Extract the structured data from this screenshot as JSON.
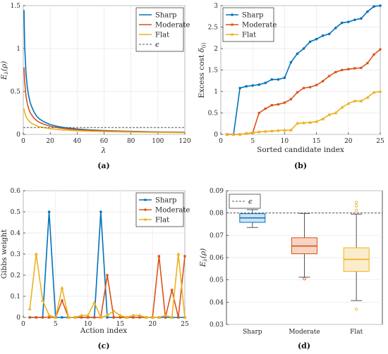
{
  "colors": {
    "sharp": "#0072BD",
    "moderate": "#D95319",
    "flat": "#EDB120",
    "epsilon": "#555555",
    "axis": "#262626",
    "grid": "#e6e6e6"
  },
  "chart_data": [
    {
      "panel": "a",
      "type": "line",
      "caption": "(a)",
      "xlabel": "λ",
      "ylabel": "E_λ(ρ)",
      "xlim": [
        0,
        120
      ],
      "ylim": [
        0,
        1.5
      ],
      "xticks": [
        "0",
        "20",
        "40",
        "60",
        "80",
        "100",
        "120"
      ],
      "yticks": [
        "0",
        "0.5",
        "1",
        "1.5"
      ],
      "grid": true,
      "legend": "top-right",
      "epsilon_line": {
        "label": "ϵ",
        "y": 0.08
      },
      "x": [
        0.5,
        1,
        2,
        3,
        4,
        5,
        6,
        8,
        10,
        12,
        15,
        20,
        25,
        30,
        40,
        50,
        60,
        70,
        80,
        90,
        100,
        110,
        120
      ],
      "series": [
        {
          "name": "Sharp",
          "values": [
            1.45,
            1.05,
            0.72,
            0.55,
            0.45,
            0.38,
            0.33,
            0.26,
            0.21,
            0.18,
            0.15,
            0.115,
            0.095,
            0.08,
            0.063,
            0.052,
            0.044,
            0.039,
            0.035,
            0.032,
            0.029,
            0.027,
            0.025
          ]
        },
        {
          "name": "Moderate",
          "values": [
            0.78,
            0.62,
            0.45,
            0.36,
            0.3,
            0.26,
            0.23,
            0.19,
            0.16,
            0.14,
            0.12,
            0.095,
            0.08,
            0.068,
            0.055,
            0.046,
            0.04,
            0.036,
            0.032,
            0.029,
            0.027,
            0.025,
            0.023
          ]
        },
        {
          "name": "Flat",
          "values": [
            0.3,
            0.26,
            0.21,
            0.18,
            0.16,
            0.145,
            0.13,
            0.115,
            0.1,
            0.09,
            0.08,
            0.067,
            0.058,
            0.051,
            0.043,
            0.037,
            0.033,
            0.03,
            0.027,
            0.025,
            0.023,
            0.022,
            0.02
          ]
        }
      ]
    },
    {
      "panel": "b",
      "type": "line",
      "caption": "(b)",
      "xlabel": "Sorted candidate index",
      "ylabel": "Excess cost δ_(i)",
      "xlim": [
        0,
        25
      ],
      "ylim": [
        0,
        3
      ],
      "xticks": [
        "0",
        "5",
        "10",
        "15",
        "20",
        "25"
      ],
      "yticks": [
        "0",
        "0.5",
        "1",
        "1.5",
        "2",
        "2.5",
        "3"
      ],
      "grid": true,
      "legend": "top-left",
      "x": [
        1,
        2,
        3,
        4,
        5,
        6,
        7,
        8,
        9,
        10,
        11,
        12,
        13,
        14,
        15,
        16,
        17,
        18,
        19,
        20,
        21,
        22,
        23,
        24,
        25
      ],
      "series": [
        {
          "name": "Sharp",
          "values": [
            0,
            0,
            1.08,
            1.12,
            1.14,
            1.16,
            1.2,
            1.28,
            1.28,
            1.32,
            1.68,
            1.88,
            2.0,
            2.16,
            2.22,
            2.3,
            2.34,
            2.48,
            2.6,
            2.62,
            2.67,
            2.7,
            2.86,
            2.98,
            3.0
          ]
        },
        {
          "name": "Moderate",
          "values": [
            0,
            0,
            0,
            0.02,
            0.04,
            0.5,
            0.6,
            0.68,
            0.7,
            0.74,
            0.82,
            0.98,
            1.08,
            1.1,
            1.15,
            1.24,
            1.36,
            1.45,
            1.5,
            1.52,
            1.54,
            1.55,
            1.66,
            1.86,
            1.98
          ]
        },
        {
          "name": "Flat",
          "values": [
            0,
            0,
            0,
            0.02,
            0.04,
            0.06,
            0.07,
            0.08,
            0.09,
            0.1,
            0.1,
            0.26,
            0.27,
            0.28,
            0.3,
            0.36,
            0.46,
            0.5,
            0.63,
            0.72,
            0.78,
            0.78,
            0.86,
            0.98,
            1.0
          ]
        }
      ]
    },
    {
      "panel": "c",
      "type": "line",
      "caption": "(c)",
      "xlabel": "Action index",
      "ylabel": "Gibbs weight",
      "xlim": [
        0,
        25
      ],
      "ylim": [
        0,
        0.6
      ],
      "xticks": [
        "0",
        "5",
        "10",
        "15",
        "20",
        "25"
      ],
      "yticks": [
        "0",
        "0.1",
        "0.2",
        "0.3",
        "0.4",
        "0.5",
        "0.6"
      ],
      "grid": true,
      "legend": "top-right",
      "x": [
        1,
        2,
        3,
        4,
        5,
        6,
        7,
        8,
        9,
        10,
        11,
        12,
        13,
        14,
        15,
        16,
        17,
        18,
        19,
        20,
        21,
        22,
        23,
        24,
        25
      ],
      "series": [
        {
          "name": "Sharp",
          "values": [
            0,
            0,
            0,
            0.5,
            0,
            0,
            0,
            0,
            0,
            0,
            0,
            0.5,
            0,
            0,
            0,
            0,
            0,
            0,
            0,
            0,
            0,
            0,
            0,
            0,
            0
          ]
        },
        {
          "name": "Moderate",
          "values": [
            0,
            0,
            0,
            0,
            0,
            0.08,
            0,
            0,
            0,
            0,
            0,
            0,
            0.2,
            0,
            0,
            0,
            0,
            0,
            0,
            0,
            0.29,
            0,
            0.13,
            0,
            0.29
          ]
        },
        {
          "name": "Flat",
          "values": [
            0.04,
            0.3,
            0.08,
            0.01,
            0,
            0.14,
            0,
            0,
            0.01,
            0.01,
            0.07,
            0,
            0.01,
            0.03,
            0.01,
            0,
            0.01,
            0.01,
            0,
            0,
            0,
            0.01,
            0,
            0.3,
            0
          ]
        }
      ]
    },
    {
      "panel": "d",
      "type": "box",
      "caption": "(d)",
      "ylabel": "E_λ(ρ)",
      "categories": [
        "Sharp",
        "Moderate",
        "Flat"
      ],
      "ylim": [
        0.03,
        0.09
      ],
      "yticks": [
        "0.03",
        "0.04",
        "0.05",
        "0.06",
        "0.07",
        "0.08",
        "0.09"
      ],
      "grid": true,
      "legend": "top-left",
      "epsilon_line": {
        "label": "ϵ",
        "y": 0.08
      },
      "boxes": [
        {
          "name": "Sharp",
          "whisker_low": 0.0735,
          "q1": 0.0758,
          "median": 0.0778,
          "q3": 0.0797,
          "whisker_high": 0.0815,
          "outliers": []
        },
        {
          "name": "Moderate",
          "whisker_low": 0.0512,
          "q1": 0.0617,
          "median": 0.0652,
          "q3": 0.0689,
          "whisker_high": 0.0798,
          "outliers": [
            0.0505
          ]
        },
        {
          "name": "Flat",
          "whisker_low": 0.0407,
          "q1": 0.0538,
          "median": 0.0592,
          "q3": 0.0644,
          "whisker_high": 0.0795,
          "outliers": [
            0.0368,
            0.0812,
            0.0832,
            0.0847
          ]
        }
      ]
    }
  ]
}
